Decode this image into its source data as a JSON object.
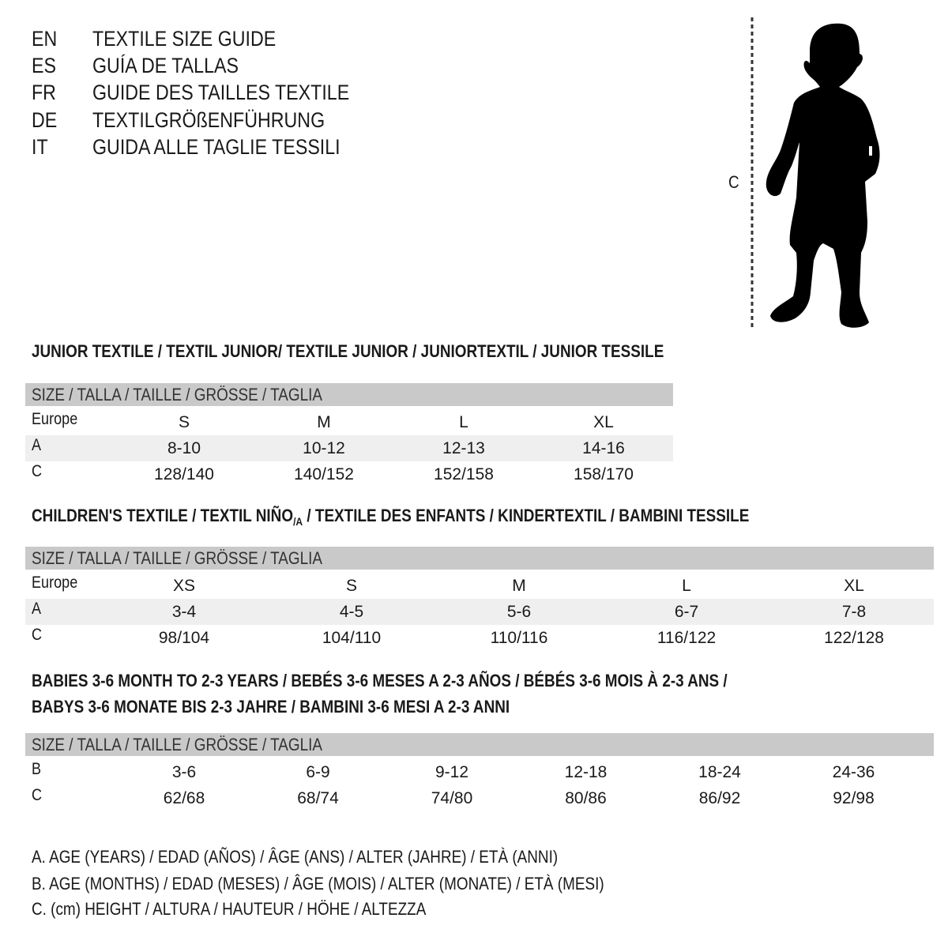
{
  "languages": [
    {
      "code": "EN",
      "title": "TEXTILE SIZE GUIDE"
    },
    {
      "code": "ES",
      "title": "GUÍA DE TALLAS"
    },
    {
      "code": "FR",
      "title": "GUIDE DES TAILLES TEXTILE"
    },
    {
      "code": "DE",
      "title": "TEXTILGRÖßENFÜHRUNG"
    },
    {
      "code": "IT",
      "title": "GUIDA ALLE TAGLIE TESSILI"
    }
  ],
  "figure": {
    "measure_label": "C"
  },
  "junior": {
    "heading": "JUNIOR TEXTILE / TEXTIL JUNIOR/ TEXTILE JUNIOR / JUNIORTEXTIL / JUNIOR TESSILE",
    "header": "SIZE / TALLA / TAILLE / GRÖSSE / TAGLIA",
    "rows": [
      {
        "label": "Europe",
        "values": [
          "S",
          "M",
          "L",
          "XL"
        ]
      },
      {
        "label": "A",
        "values": [
          "8-10",
          "10-12",
          "12-13",
          "14-16"
        ]
      },
      {
        "label": "C",
        "values": [
          "128/140",
          "140/152",
          "152/158",
          "158/170"
        ]
      }
    ]
  },
  "children": {
    "heading_pre": "CHILDREN'S TEXTILE / TEXTIL NIÑO",
    "heading_sub": "/A",
    "heading_post": " / TEXTILE DES ENFANTS / KINDERTEXTIL / BAMBINI TESSILE",
    "header": "SIZE / TALLA / TAILLE / GRÖSSE / TAGLIA",
    "rows": [
      {
        "label": "Europe",
        "values": [
          "XS",
          "S",
          "M",
          "L",
          "XL"
        ]
      },
      {
        "label": "A",
        "values": [
          "3-4",
          "4-5",
          "5-6",
          "6-7",
          "7-8"
        ]
      },
      {
        "label": "C",
        "values": [
          "98/104",
          "104/110",
          "110/116",
          "116/122",
          "122/128"
        ]
      }
    ]
  },
  "babies": {
    "heading_line1": "BABIES 3-6 MONTH TO 2-3 YEARS / BEBÉS 3-6 MESES A 2-3 AÑOS / BÉBÉS 3-6 MOIS À 2-3 ANS /",
    "heading_line2": "BABYS 3-6 MONATE BIS 2-3 JAHRE / BAMBINI 3-6 MESI A 2-3 ANNI",
    "header": "SIZE / TALLA / TAILLE / GRÖSSE / TAGLIA",
    "rows": [
      {
        "label": "B",
        "values": [
          "3-6",
          "6-9",
          "9-12",
          "12-18",
          "18-24",
          "24-36"
        ]
      },
      {
        "label": "C",
        "values": [
          "62/68",
          "68/74",
          "74/80",
          "80/86",
          "86/92",
          "92/98"
        ]
      }
    ]
  },
  "notes": [
    "A. AGE (YEARS) / EDAD (AÑOS) / ÂGE (ANS) / ALTER (JAHRE) / ETÀ (ANNI)",
    "B. AGE (MONTHS) / EDAD (MESES) / ÂGE (MOIS) / ALTER (MONATE) / ETÀ (MESI)",
    "C. (cm) HEIGHT / ALTURA / HAUTEUR / HÖHE / ALTEZZA"
  ],
  "colors": {
    "header_band": "#c9c9c9",
    "shade_row": "#efefef",
    "text": "#1a1a1a"
  }
}
